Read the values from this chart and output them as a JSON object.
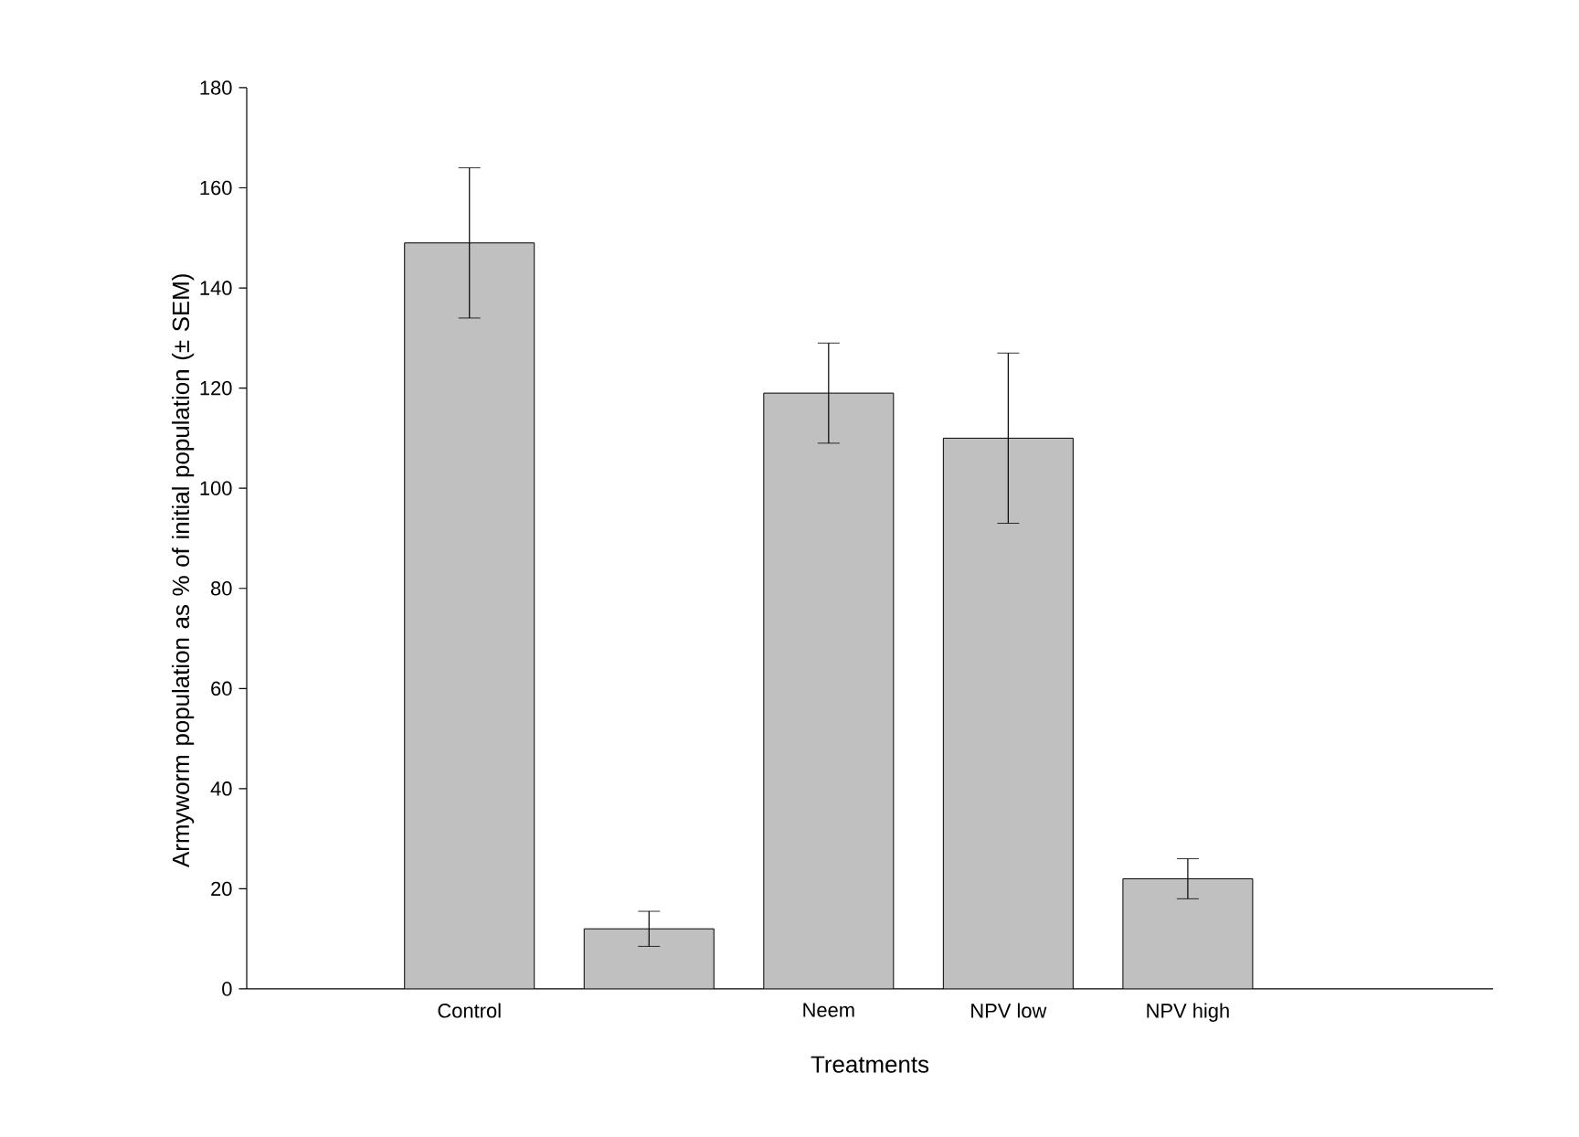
{
  "chart_data": {
    "type": "bar",
    "xlabel": "Treatments",
    "ylabel": "Armyworm population as % of initial population (± SEM)",
    "categories": [
      "Control",
      null,
      "Neem",
      "NPV low",
      "NPV high"
    ],
    "values": [
      149,
      12,
      119,
      110,
      22
    ],
    "errors": [
      15,
      3.5,
      10,
      17,
      4
    ],
    "color": "#c0c0c0",
    "ylim": [
      0,
      180
    ],
    "yticks": [
      0,
      20,
      40,
      60,
      80,
      100,
      120,
      140,
      160,
      180
    ],
    "grid": false
  }
}
